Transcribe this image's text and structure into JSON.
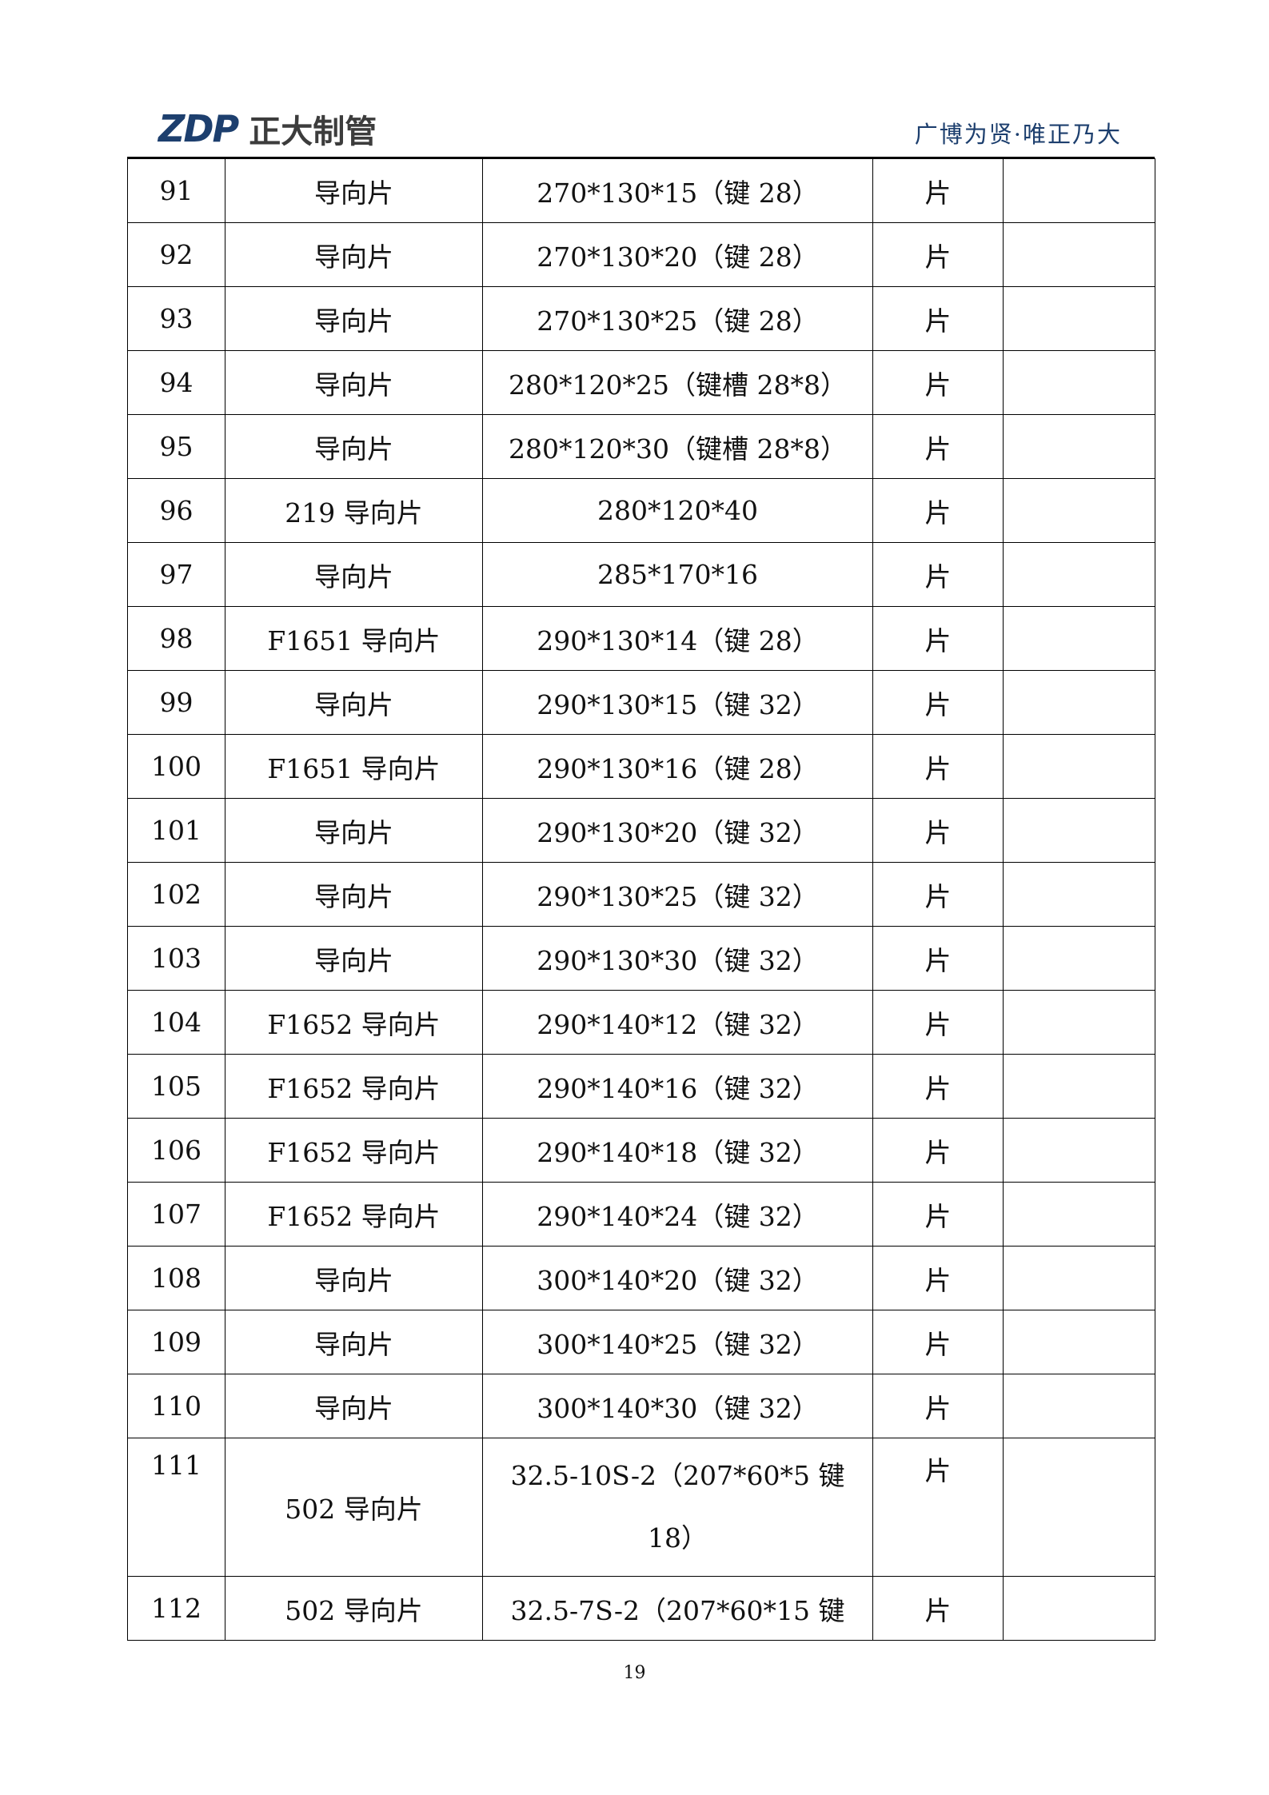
{
  "header": {
    "logo_mark": "ZDP",
    "logo_text": "正大制管",
    "slogan": "广博为贤·唯正乃大",
    "brand_color": "#1d3f6e"
  },
  "rows": [
    {
      "no": "91",
      "name": "导向片",
      "spec": "270*130*15（键 28）",
      "unit": "片",
      "note": ""
    },
    {
      "no": "92",
      "name": "导向片",
      "spec": "270*130*20（键 28）",
      "unit": "片",
      "note": ""
    },
    {
      "no": "93",
      "name": "导向片",
      "spec": "270*130*25（键 28）",
      "unit": "片",
      "note": ""
    },
    {
      "no": "94",
      "name": "导向片",
      "spec": "280*120*25（键槽 28*8）",
      "unit": "片",
      "note": ""
    },
    {
      "no": "95",
      "name": "导向片",
      "spec": "280*120*30（键槽 28*8）",
      "unit": "片",
      "note": ""
    },
    {
      "no": "96",
      "name": "219 导向片",
      "spec": "280*120*40",
      "unit": "片",
      "note": ""
    },
    {
      "no": "97",
      "name": "导向片",
      "spec": "285*170*16",
      "unit": "片",
      "note": ""
    },
    {
      "no": "98",
      "name": "F1651 导向片",
      "spec": "290*130*14（键 28）",
      "unit": "片",
      "note": ""
    },
    {
      "no": "99",
      "name": "导向片",
      "spec": "290*130*15（键 32）",
      "unit": "片",
      "note": ""
    },
    {
      "no": "100",
      "name": "F1651 导向片",
      "spec": "290*130*16（键 28）",
      "unit": "片",
      "note": ""
    },
    {
      "no": "101",
      "name": "导向片",
      "spec": "290*130*20（键 32）",
      "unit": "片",
      "note": ""
    },
    {
      "no": "102",
      "name": "导向片",
      "spec": "290*130*25（键 32）",
      "unit": "片",
      "note": ""
    },
    {
      "no": "103",
      "name": "导向片",
      "spec": "290*130*30（键 32）",
      "unit": "片",
      "note": ""
    },
    {
      "no": "104",
      "name": "F1652 导向片",
      "spec": "290*140*12（键 32）",
      "unit": "片",
      "note": ""
    },
    {
      "no": "105",
      "name": "F1652 导向片",
      "spec": "290*140*16（键 32）",
      "unit": "片",
      "note": ""
    },
    {
      "no": "106",
      "name": "F1652 导向片",
      "spec": "290*140*18（键 32）",
      "unit": "片",
      "note": ""
    },
    {
      "no": "107",
      "name": "F1652 导向片",
      "spec": "290*140*24（键 32）",
      "unit": "片",
      "note": ""
    },
    {
      "no": "108",
      "name": "导向片",
      "spec": "300*140*20（键 32）",
      "unit": "片",
      "note": ""
    },
    {
      "no": "109",
      "name": "导向片",
      "spec": "300*140*25（键 32）",
      "unit": "片",
      "note": ""
    },
    {
      "no": "110",
      "name": "导向片",
      "spec": "300*140*30（键 32）",
      "unit": "片",
      "note": ""
    },
    {
      "no": "111",
      "name": "502 导向片",
      "spec": "32.5-10S-2（207*60*5 键 18）",
      "unit": "片",
      "note": ""
    },
    {
      "no": "112",
      "name": "502 导向片",
      "spec": "32.5-7S-2（207*60*15 键",
      "unit": "片",
      "note": ""
    }
  ],
  "footer": {
    "page_number": "19"
  }
}
